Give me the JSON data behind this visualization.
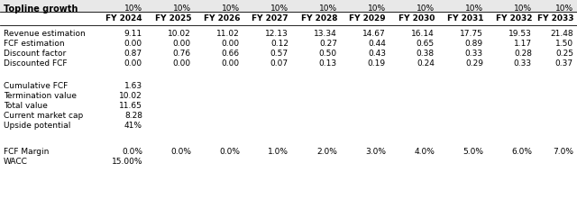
{
  "title": "Topline growth",
  "topline_growth_values": [
    "10%",
    "10%",
    "10%",
    "10%",
    "10%",
    "10%",
    "10%",
    "10%",
    "10%",
    "10%"
  ],
  "years": [
    "FY 2024",
    "FY 2025",
    "FY 2026",
    "FY 2027",
    "FY 2028",
    "FY 2029",
    "FY 2030",
    "FY 2031",
    "FY 2032",
    "FY 2033"
  ],
  "revenue_estimation": [
    "9.11",
    "10.02",
    "11.02",
    "12.13",
    "13.34",
    "14.67",
    "16.14",
    "17.75",
    "19.53",
    "21.48"
  ],
  "fcf_estimation": [
    "0.00",
    "0.00",
    "0.00",
    "0.12",
    "0.27",
    "0.44",
    "0.65",
    "0.89",
    "1.17",
    "1.50"
  ],
  "discount_factor": [
    "0.87",
    "0.76",
    "0.66",
    "0.57",
    "0.50",
    "0.43",
    "0.38",
    "0.33",
    "0.28",
    "0.25"
  ],
  "discounted_fcf": [
    "0.00",
    "0.00",
    "0.00",
    "0.07",
    "0.13",
    "0.19",
    "0.24",
    "0.29",
    "0.33",
    "0.37"
  ],
  "cumulative_fcf": "1.63",
  "termination_value": "10.02",
  "total_value": "11.65",
  "current_market_cap": "8.28",
  "upside_potential": "41%",
  "fcf_margin": [
    "0.0%",
    "0.0%",
    "0.0%",
    "1.0%",
    "2.0%",
    "3.0%",
    "4.0%",
    "5.0%",
    "6.0%",
    "7.0%"
  ],
  "wacc": "15.00%",
  "header_bg": "#e8e8e8",
  "bg_color": "#ffffff",
  "label_color": "#000000",
  "fontsize": 6.5,
  "bold_fontsize": 7.0
}
